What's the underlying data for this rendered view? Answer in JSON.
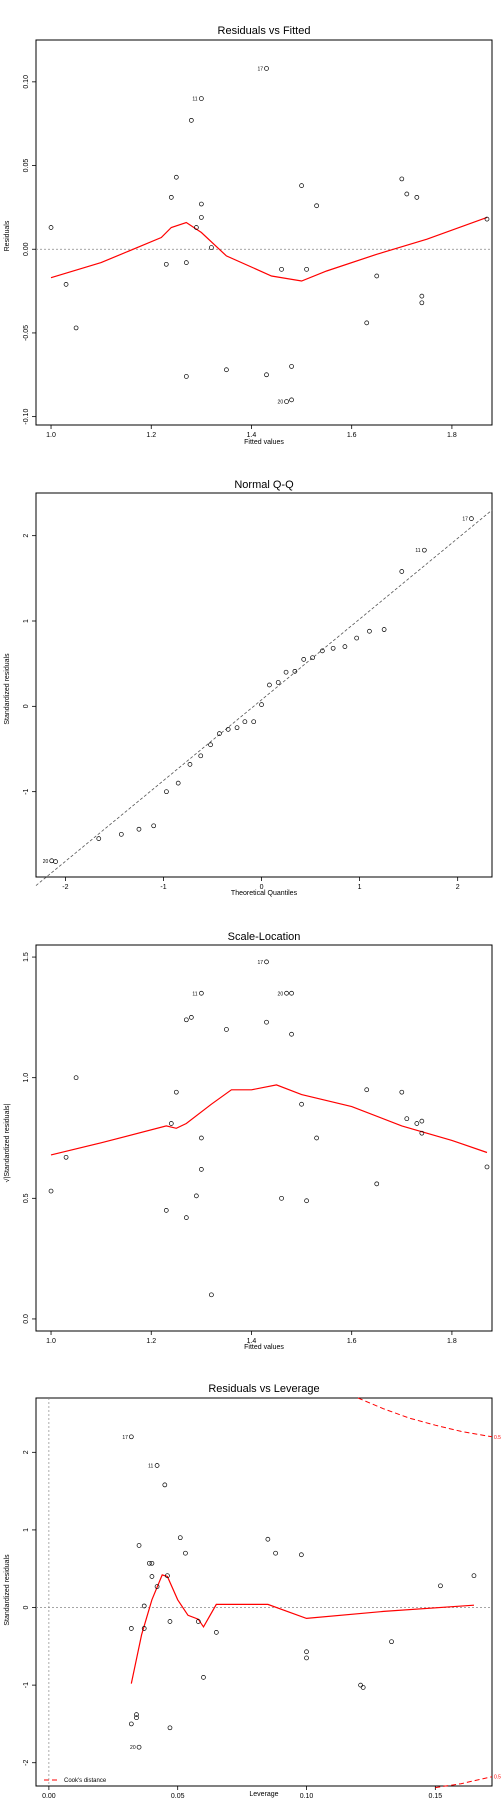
{
  "chart_data": [
    {
      "type": "scatter",
      "title": "Residuals vs Fitted",
      "xlabel": "Fitted values",
      "ylabel": "Residuals",
      "xlim": [
        0.97,
        1.88
      ],
      "ylim": [
        -0.105,
        0.125
      ],
      "xticks": [
        "1.0",
        "1.2",
        "1.4",
        "1.6",
        "1.8"
      ],
      "xtick_values": [
        1.0,
        1.2,
        1.4,
        1.6,
        1.8
      ],
      "yticks": [
        "-0.10",
        "-0.05",
        "0.00",
        "0.05",
        "0.10"
      ],
      "ytick_values": [
        -0.1,
        -0.05,
        0.0,
        0.05,
        0.1
      ],
      "reference_line_y": 0,
      "points": [
        {
          "x": 1.0,
          "y": 0.013
        },
        {
          "x": 1.03,
          "y": -0.021
        },
        {
          "x": 1.05,
          "y": -0.047
        },
        {
          "x": 1.23,
          "y": -0.009
        },
        {
          "x": 1.24,
          "y": 0.031
        },
        {
          "x": 1.25,
          "y": 0.043
        },
        {
          "x": 1.27,
          "y": -0.076
        },
        {
          "x": 1.27,
          "y": -0.008
        },
        {
          "x": 1.28,
          "y": 0.077
        },
        {
          "x": 1.29,
          "y": 0.013
        },
        {
          "x": 1.3,
          "y": 0.09,
          "label": "11"
        },
        {
          "x": 1.3,
          "y": 0.027
        },
        {
          "x": 1.3,
          "y": 0.019
        },
        {
          "x": 1.32,
          "y": 0.001
        },
        {
          "x": 1.35,
          "y": -0.072
        },
        {
          "x": 1.43,
          "y": 0.108,
          "label": "17"
        },
        {
          "x": 1.43,
          "y": -0.075
        },
        {
          "x": 1.46,
          "y": -0.012
        },
        {
          "x": 1.47,
          "y": -0.091,
          "label": "20"
        },
        {
          "x": 1.48,
          "y": -0.07
        },
        {
          "x": 1.48,
          "y": -0.09
        },
        {
          "x": 1.5,
          "y": 0.038
        },
        {
          "x": 1.51,
          "y": -0.012
        },
        {
          "x": 1.53,
          "y": 0.026
        },
        {
          "x": 1.63,
          "y": -0.044
        },
        {
          "x": 1.65,
          "y": -0.016
        },
        {
          "x": 1.7,
          "y": 0.042
        },
        {
          "x": 1.71,
          "y": 0.033
        },
        {
          "x": 1.73,
          "y": 0.031
        },
        {
          "x": 1.74,
          "y": -0.028
        },
        {
          "x": 1.74,
          "y": -0.032
        },
        {
          "x": 1.87,
          "y": 0.018
        }
      ],
      "smooth": [
        [
          1.0,
          -0.017
        ],
        [
          1.1,
          -0.008
        ],
        [
          1.22,
          0.007
        ],
        [
          1.24,
          0.013
        ],
        [
          1.27,
          0.016
        ],
        [
          1.3,
          0.01
        ],
        [
          1.35,
          -0.004
        ],
        [
          1.44,
          -0.016
        ],
        [
          1.5,
          -0.019
        ],
        [
          1.55,
          -0.013
        ],
        [
          1.65,
          -0.003
        ],
        [
          1.75,
          0.006
        ],
        [
          1.87,
          0.019
        ]
      ]
    },
    {
      "type": "scatter",
      "title": "Normal Q-Q",
      "xlabel": "Theoretical Quantiles",
      "ylabel": "Standardized residuals",
      "xlim": [
        -2.3,
        2.35
      ],
      "ylim": [
        -2.0,
        2.5
      ],
      "xticks": [
        "-2",
        "-1",
        "0",
        "1",
        "2"
      ],
      "xtick_values": [
        -2,
        -1,
        0,
        1,
        2
      ],
      "yticks": [
        "-1",
        "0",
        "1",
        "2"
      ],
      "ytick_values": [
        -1,
        0,
        1,
        2
      ],
      "qqline": [
        [
          -2.3,
          -2.1
        ],
        [
          2.35,
          2.3
        ]
      ],
      "points": [
        {
          "x": -2.14,
          "y": -1.81,
          "label": "20"
        },
        {
          "x": -2.1,
          "y": -1.82
        },
        {
          "x": -1.66,
          "y": -1.55
        },
        {
          "x": -1.43,
          "y": -1.5
        },
        {
          "x": -1.25,
          "y": -1.44
        },
        {
          "x": -1.1,
          "y": -1.4
        },
        {
          "x": -0.97,
          "y": -1.0
        },
        {
          "x": -0.85,
          "y": -0.9
        },
        {
          "x": -0.73,
          "y": -0.68
        },
        {
          "x": -0.62,
          "y": -0.58
        },
        {
          "x": -0.52,
          "y": -0.45
        },
        {
          "x": -0.43,
          "y": -0.32
        },
        {
          "x": -0.34,
          "y": -0.27
        },
        {
          "x": -0.25,
          "y": -0.25
        },
        {
          "x": -0.17,
          "y": -0.18
        },
        {
          "x": -0.08,
          "y": -0.18
        },
        {
          "x": 0.0,
          "y": 0.02
        },
        {
          "x": 0.08,
          "y": 0.25
        },
        {
          "x": 0.17,
          "y": 0.28
        },
        {
          "x": 0.25,
          "y": 0.4
        },
        {
          "x": 0.34,
          "y": 0.41
        },
        {
          "x": 0.43,
          "y": 0.55
        },
        {
          "x": 0.52,
          "y": 0.57
        },
        {
          "x": 0.62,
          "y": 0.65
        },
        {
          "x": 0.73,
          "y": 0.68
        },
        {
          "x": 0.85,
          "y": 0.7
        },
        {
          "x": 0.97,
          "y": 0.8
        },
        {
          "x": 1.1,
          "y": 0.88
        },
        {
          "x": 1.25,
          "y": 0.9
        },
        {
          "x": 1.43,
          "y": 1.58
        },
        {
          "x": 1.66,
          "y": 1.83,
          "label": "11"
        },
        {
          "x": 2.14,
          "y": 2.2,
          "label": "17"
        }
      ]
    },
    {
      "type": "scatter",
      "title": "Scale-Location",
      "xlabel": "Fitted values",
      "ylabel": "√|Standardized residuals|",
      "xlim": [
        0.97,
        1.88
      ],
      "ylim": [
        -0.05,
        1.55
      ],
      "xticks": [
        "1.0",
        "1.2",
        "1.4",
        "1.6",
        "1.8"
      ],
      "xtick_values": [
        1.0,
        1.2,
        1.4,
        1.6,
        1.8
      ],
      "yticks": [
        "0.0",
        "0.5",
        "1.0",
        "1.5"
      ],
      "ytick_values": [
        0.0,
        0.5,
        1.0,
        1.5
      ],
      "points": [
        {
          "x": 1.0,
          "y": 0.53
        },
        {
          "x": 1.03,
          "y": 0.67
        },
        {
          "x": 1.05,
          "y": 1.0
        },
        {
          "x": 1.23,
          "y": 0.45
        },
        {
          "x": 1.24,
          "y": 0.81
        },
        {
          "x": 1.25,
          "y": 0.94
        },
        {
          "x": 1.27,
          "y": 0.42
        },
        {
          "x": 1.27,
          "y": 1.24
        },
        {
          "x": 1.28,
          "y": 1.25
        },
        {
          "x": 1.29,
          "y": 0.51
        },
        {
          "x": 1.3,
          "y": 1.35,
          "label": "11"
        },
        {
          "x": 1.3,
          "y": 0.62
        },
        {
          "x": 1.3,
          "y": 0.75
        },
        {
          "x": 1.32,
          "y": 0.1
        },
        {
          "x": 1.35,
          "y": 1.2
        },
        {
          "x": 1.43,
          "y": 1.48,
          "label": "17"
        },
        {
          "x": 1.43,
          "y": 1.23
        },
        {
          "x": 1.46,
          "y": 0.5
        },
        {
          "x": 1.47,
          "y": 1.35,
          "label": "20"
        },
        {
          "x": 1.48,
          "y": 1.18
        },
        {
          "x": 1.48,
          "y": 1.35
        },
        {
          "x": 1.5,
          "y": 0.89
        },
        {
          "x": 1.51,
          "y": 0.49
        },
        {
          "x": 1.53,
          "y": 0.75
        },
        {
          "x": 1.63,
          "y": 0.95
        },
        {
          "x": 1.65,
          "y": 0.56
        },
        {
          "x": 1.7,
          "y": 0.94
        },
        {
          "x": 1.71,
          "y": 0.83
        },
        {
          "x": 1.73,
          "y": 0.81
        },
        {
          "x": 1.74,
          "y": 0.77
        },
        {
          "x": 1.74,
          "y": 0.82
        },
        {
          "x": 1.87,
          "y": 0.63
        }
      ],
      "smooth": [
        [
          1.0,
          0.68
        ],
        [
          1.1,
          0.73
        ],
        [
          1.23,
          0.8
        ],
        [
          1.25,
          0.79
        ],
        [
          1.27,
          0.81
        ],
        [
          1.32,
          0.89
        ],
        [
          1.36,
          0.95
        ],
        [
          1.4,
          0.95
        ],
        [
          1.45,
          0.97
        ],
        [
          1.5,
          0.93
        ],
        [
          1.6,
          0.88
        ],
        [
          1.7,
          0.8
        ],
        [
          1.8,
          0.74
        ],
        [
          1.87,
          0.69
        ]
      ]
    },
    {
      "type": "scatter",
      "title": "Residuals vs Leverage",
      "xlabel": "Leverage",
      "ylabel": "Standardized residuals",
      "xlim": [
        -0.005,
        0.172
      ],
      "ylim": [
        -2.3,
        2.7
      ],
      "xticks": [
        "0.00",
        "0.05",
        "0.10",
        "0.15"
      ],
      "xtick_values": [
        0.0,
        0.05,
        0.1,
        0.15
      ],
      "yticks": [
        "-2",
        "-1",
        "0",
        "1",
        "2"
      ],
      "ytick_values": [
        -2,
        -1,
        0,
        1,
        2
      ],
      "reference_line_y": 0,
      "reference_line_x": 0,
      "legend": {
        "label": "Cook's distance",
        "position": "bottom-left"
      },
      "cook_labels": [
        "0.5",
        "0.5"
      ],
      "cook_upper": [
        [
          0.12,
          2.7
        ],
        [
          0.13,
          2.56
        ],
        [
          0.14,
          2.44
        ],
        [
          0.15,
          2.35
        ],
        [
          0.16,
          2.27
        ],
        [
          0.172,
          2.2
        ]
      ],
      "cook_lower": [
        [
          0.15,
          -2.32
        ],
        [
          0.16,
          -2.27
        ],
        [
          0.172,
          -2.18
        ]
      ],
      "points": [
        {
          "x": 0.032,
          "y": 2.2,
          "label": "17"
        },
        {
          "x": 0.032,
          "y": -1.5
        },
        {
          "x": 0.032,
          "y": -0.27
        },
        {
          "x": 0.034,
          "y": -1.38
        },
        {
          "x": 0.034,
          "y": -1.42
        },
        {
          "x": 0.035,
          "y": 0.8
        },
        {
          "x": 0.035,
          "y": -1.8,
          "label": "20"
        },
        {
          "x": 0.037,
          "y": 0.02
        },
        {
          "x": 0.037,
          "y": -0.27
        },
        {
          "x": 0.039,
          "y": 0.57
        },
        {
          "x": 0.04,
          "y": 0.57
        },
        {
          "x": 0.04,
          "y": 0.4
        },
        {
          "x": 0.042,
          "y": 1.83,
          "label": "11"
        },
        {
          "x": 0.042,
          "y": 0.27
        },
        {
          "x": 0.045,
          "y": 1.58
        },
        {
          "x": 0.046,
          "y": 0.41
        },
        {
          "x": 0.047,
          "y": -0.18
        },
        {
          "x": 0.047,
          "y": -1.55
        },
        {
          "x": 0.051,
          "y": 0.9
        },
        {
          "x": 0.053,
          "y": 0.7
        },
        {
          "x": 0.058,
          "y": -0.18
        },
        {
          "x": 0.06,
          "y": -0.9
        },
        {
          "x": 0.065,
          "y": -0.32
        },
        {
          "x": 0.085,
          "y": 0.88
        },
        {
          "x": 0.088,
          "y": 0.7
        },
        {
          "x": 0.098,
          "y": 0.68
        },
        {
          "x": 0.1,
          "y": -0.57
        },
        {
          "x": 0.1,
          "y": -0.65
        },
        {
          "x": 0.121,
          "y": -1.0
        },
        {
          "x": 0.122,
          "y": -1.03
        },
        {
          "x": 0.133,
          "y": -0.44
        },
        {
          "x": 0.152,
          "y": 0.28
        },
        {
          "x": 0.165,
          "y": 0.41
        }
      ],
      "smooth": [
        [
          0.032,
          -0.98
        ],
        [
          0.036,
          -0.35
        ],
        [
          0.04,
          0.1
        ],
        [
          0.044,
          0.42
        ],
        [
          0.046,
          0.4
        ],
        [
          0.05,
          0.1
        ],
        [
          0.054,
          -0.1
        ],
        [
          0.058,
          -0.15
        ],
        [
          0.06,
          -0.25
        ],
        [
          0.065,
          0.04
        ],
        [
          0.085,
          0.04
        ],
        [
          0.1,
          -0.14
        ],
        [
          0.13,
          -0.05
        ],
        [
          0.165,
          0.03
        ]
      ]
    }
  ]
}
